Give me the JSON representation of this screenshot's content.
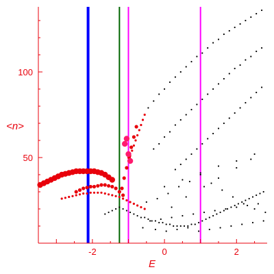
{
  "chart_data": {
    "type": "scatter",
    "xlabel": "E",
    "ylabel": "<n>",
    "xlim": [
      -3.5,
      2.85
    ],
    "ylim": [
      0,
      138
    ],
    "grid": false,
    "x_ticks": [
      -2,
      0,
      2
    ],
    "x_tick_labels": [
      "-2",
      "0",
      "2"
    ],
    "y_ticks": [
      50,
      100
    ],
    "y_tick_labels": [
      "50",
      "100"
    ],
    "colors": {
      "axis": "#e8000b",
      "red_series": "#e8000b",
      "magenta_points": "#ff1a6e",
      "black_points": "#000000",
      "blue_line": "#0000ff",
      "green_line": "#006400",
      "magenta_lines": "#ff00ff"
    },
    "vertical_lines": [
      {
        "x": -2.12,
        "color": "#0000ff",
        "width": "thick"
      },
      {
        "x": -1.25,
        "color": "#006400",
        "width": "thin"
      },
      {
        "x": -1.0,
        "color": "#ff00ff",
        "width": "thin"
      },
      {
        "x": 1.0,
        "color": "#ff00ff",
        "width": "thin"
      }
    ],
    "series": [
      {
        "color": "#e8000b",
        "marker": "large-dots",
        "x": [
          -3.45,
          -3.35,
          -3.25,
          -3.15,
          -3.05,
          -2.95,
          -2.85,
          -2.75,
          -2.65,
          -2.55,
          -2.45,
          -2.35,
          -2.25,
          -2.15,
          -2.05,
          -1.95,
          -1.85,
          -1.75,
          -1.65,
          -1.55,
          -1.45
        ],
        "y": [
          34,
          35,
          36,
          37,
          38,
          39,
          40,
          40.5,
          41,
          41.5,
          42,
          42,
          42,
          42,
          42,
          42,
          41.5,
          41,
          40,
          38.5,
          37
        ]
      },
      {
        "color": "#e8000b",
        "marker": "medium-dots",
        "x": [
          -2.45,
          -2.35,
          -2.25,
          -2.15,
          -2.05,
          -1.95,
          -1.85,
          -1.75,
          -1.65,
          -1.55,
          -1.45,
          -1.35,
          -1.25,
          -1.15
        ],
        "y": [
          30,
          31,
          32,
          32.5,
          33,
          33,
          33.5,
          34,
          34,
          33.5,
          33,
          32,
          30,
          28
        ]
      },
      {
        "color": "#e8000b",
        "marker": "small-dots",
        "x": [
          -2.85,
          -2.75,
          -2.65,
          -2.55,
          -2.45,
          -2.35,
          -2.25,
          -2.15,
          -2.05,
          -1.95,
          -1.85,
          -1.75,
          -1.65,
          -1.55,
          -1.45,
          -1.35,
          -1.25,
          -1.15,
          -1.05,
          -0.95,
          -0.85,
          -0.75,
          -0.65,
          -0.55
        ],
        "y": [
          26,
          26.5,
          27,
          27.5,
          28,
          28.5,
          29,
          29,
          29.5,
          29.5,
          29.5,
          29.5,
          29,
          28.5,
          28,
          27.5,
          27,
          26,
          25,
          24,
          23,
          22,
          21,
          20
        ]
      },
      {
        "color": "#e8000b",
        "marker": "small-dots",
        "x": [
          -0.55,
          -0.6,
          -0.65,
          -0.7,
          -0.75,
          -0.8,
          -0.85,
          -0.9,
          -0.95,
          -1.0
        ],
        "y": [
          75,
          72,
          69,
          66,
          63,
          60,
          57,
          54,
          51,
          48
        ]
      },
      {
        "color": "#e8000b",
        "marker": "medium-dots",
        "x": [
          -0.78,
          -0.85,
          -0.92,
          -0.98,
          -1.05,
          -1.12,
          -1.18
        ],
        "y": [
          68,
          62,
          56,
          50,
          44,
          38,
          32
        ]
      },
      {
        "color": "#ff1a6e",
        "marker": "large-dots",
        "x": [
          -1.1,
          -1.05,
          -1.0,
          -0.95
        ],
        "y": [
          58,
          61,
          52,
          48
        ]
      },
      {
        "color": "#000000",
        "marker": "tiny-dots",
        "x": [
          -0.45,
          -0.3,
          -0.15,
          0.0,
          0.15,
          0.3,
          0.45,
          0.6,
          0.75,
          0.9,
          1.05,
          1.2,
          1.35,
          1.5,
          1.65,
          1.8,
          1.95,
          2.1,
          2.25,
          2.4,
          2.55,
          2.7
        ],
        "y": [
          79,
          83,
          87,
          90,
          94,
          97,
          100,
          103,
          106,
          109,
          111,
          114,
          117,
          119,
          122,
          124,
          126,
          128,
          130,
          132,
          134,
          136
        ]
      },
      {
        "color": "#000000",
        "marker": "tiny-dots",
        "x": [
          -0.3,
          -0.15,
          0.0,
          0.15,
          0.3,
          0.45,
          0.6,
          0.75,
          0.9,
          1.05,
          1.2,
          1.35,
          1.5,
          1.65,
          1.8,
          1.95,
          2.1,
          2.25,
          2.4,
          2.55,
          2.7
        ],
        "y": [
          55,
          58,
          62,
          65,
          69,
          72,
          75,
          78,
          81,
          84,
          87,
          90,
          93,
          96,
          99,
          102,
          104,
          107,
          109,
          112,
          114
        ]
      },
      {
        "color": "#000000",
        "marker": "tiny-dots",
        "x": [
          0.3,
          0.45,
          0.6,
          0.75,
          0.9,
          1.05,
          1.2,
          1.35,
          1.5,
          1.65,
          1.8,
          1.95,
          2.1,
          2.25,
          2.4,
          2.55,
          2.7
        ],
        "y": [
          43,
          46,
          49,
          52,
          55,
          58,
          61,
          64,
          67,
          70,
          73,
          76,
          79,
          82,
          85,
          88,
          91
        ]
      },
      {
        "color": "#000000",
        "marker": "tiny-dots",
        "x": [
          -1.65,
          -1.55,
          -1.45,
          -1.35,
          -1.25,
          -1.15,
          -1.05,
          -0.95,
          -0.85,
          -0.75,
          -0.65,
          -0.55,
          -0.45,
          -0.35,
          -0.25,
          -0.15,
          -0.05,
          0.05,
          0.15,
          0.25,
          0.35,
          0.45,
          0.55,
          0.65,
          0.75,
          0.85,
          0.95,
          1.05,
          1.15,
          1.25,
          1.35,
          1.45,
          1.55,
          1.65,
          1.75,
          1.85,
          1.95,
          2.05,
          2.15,
          2.25,
          2.35,
          2.45,
          2.55,
          2.65,
          2.75,
          -0.5,
          -0.2,
          0.1,
          0.4,
          0.7,
          1.0,
          1.3,
          1.6,
          1.9,
          2.2,
          2.5,
          2.8,
          0.2,
          0.6,
          1.1,
          1.5,
          2.0,
          2.4
        ],
        "y": [
          17,
          18,
          19,
          20,
          21,
          20,
          19,
          18,
          17,
          16,
          15,
          15,
          14,
          13,
          13,
          12,
          12,
          11,
          11,
          10,
          10,
          10,
          10,
          10,
          11,
          11,
          12,
          13,
          14,
          15,
          16,
          17,
          18,
          19,
          20,
          21,
          22,
          23,
          24,
          25,
          26,
          27,
          28,
          29,
          30,
          24,
          26,
          29,
          33,
          36,
          40,
          35,
          31,
          27,
          23,
          20,
          18,
          21,
          27,
          33,
          38,
          44,
          49
        ]
      },
      {
        "color": "#000000",
        "marker": "tiny-dots",
        "x": [
          -0.4,
          -0.1,
          0.2,
          0.5,
          0.8,
          1.1,
          1.4,
          1.7,
          2.0,
          2.3,
          2.6,
          -0.6,
          -0.25,
          0.05,
          0.35,
          0.65,
          0.95,
          1.25,
          1.55,
          1.85,
          2.15,
          2.45,
          2.75,
          0.0,
          0.5,
          1.0,
          1.5,
          2.0,
          2.5
        ],
        "y": [
          13,
          14,
          15,
          16,
          17,
          18,
          19,
          20,
          21,
          22,
          23,
          9,
          8,
          7,
          8,
          9,
          7,
          8,
          9,
          10,
          11,
          12,
          13,
          33,
          37,
          41,
          45,
          48,
          52
        ]
      }
    ]
  }
}
